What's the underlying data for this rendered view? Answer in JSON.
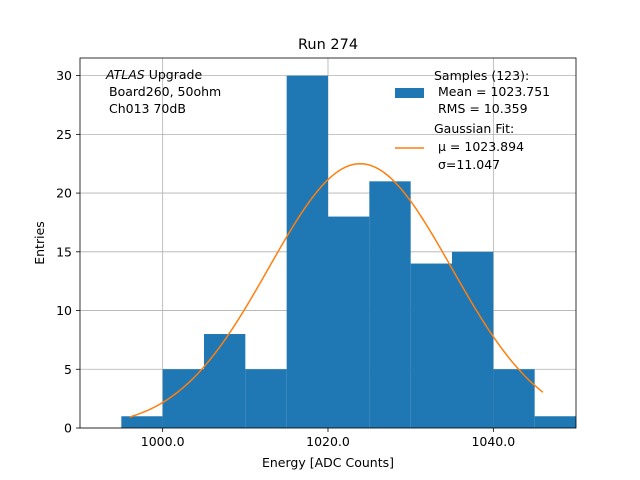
{
  "chart_data": {
    "type": "bar",
    "title": "Run 274",
    "xlabel": "Energy [ADC Counts]",
    "ylabel": "Entries",
    "xlim": [
      990,
      1050
    ],
    "ylim": [
      0,
      31.5
    ],
    "xticks": [
      1000,
      1020,
      1040
    ],
    "xtick_labels": [
      "1000.0",
      "1020.0",
      "1040.0"
    ],
    "yticks": [
      0,
      5,
      10,
      15,
      20,
      25,
      30
    ],
    "ytick_labels": [
      "0",
      "5",
      "10",
      "15",
      "20",
      "25",
      "30"
    ],
    "grid": true,
    "bin_edges": [
      995,
      1000,
      1005,
      1010,
      1015,
      1020,
      1025,
      1030,
      1035,
      1040,
      1045,
      1050
    ],
    "counts": [
      1,
      5,
      8,
      5,
      30,
      18,
      21,
      14,
      15,
      5,
      1
    ],
    "histogram_color": "#1f77b4",
    "fit": {
      "mu": 1023.894,
      "sigma": 11.047,
      "amplitude": 22.5,
      "x_range": [
        996,
        1046
      ],
      "color": "#ff7f0e"
    },
    "annotation": {
      "line1_italic": "ATLAS",
      "line1_rest": " Upgrade",
      "line2": "Board260, 50ohm",
      "line3": "Ch013 70dB"
    },
    "legend": {
      "placement": "top-right",
      "samples_title": "Samples (123):",
      "samples_mean": "Mean = 1023.751",
      "samples_rms": "RMS = 10.359",
      "fit_title": "Gaussian Fit:",
      "fit_mu": "μ = 1023.894",
      "fit_sigma": "σ=11.047"
    }
  }
}
